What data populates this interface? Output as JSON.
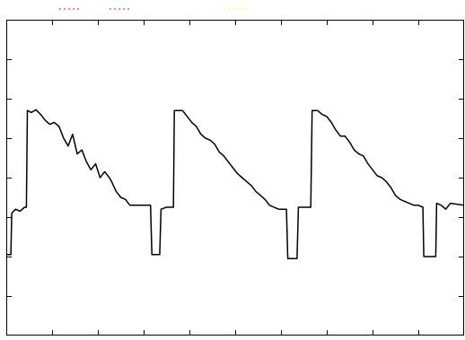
{
  "chart_data": {
    "type": "line",
    "title": "",
    "xlabel": "",
    "ylabel": "",
    "xlim": [
      0,
      100
    ],
    "ylim": [
      0,
      8
    ],
    "grid": false,
    "colors": {
      "axis": "#000000",
      "line": "#000000",
      "bg": "#ffffff"
    },
    "x_ticks": [
      10,
      20,
      30,
      40,
      50,
      60,
      70,
      80,
      90
    ],
    "y_ticks": [
      1,
      2,
      3,
      4,
      5,
      6,
      7
    ],
    "series": [
      {
        "color": "#000000",
        "points": [
          [
            0.0,
            2.05
          ],
          [
            1.0,
            2.05
          ],
          [
            1.2,
            3.1
          ],
          [
            2.0,
            3.2
          ],
          [
            3.0,
            3.15
          ],
          [
            4.0,
            3.25
          ],
          [
            4.4,
            3.25
          ],
          [
            4.6,
            5.7
          ],
          [
            5.5,
            5.65
          ],
          [
            6.5,
            5.72
          ],
          [
            7.5,
            5.6
          ],
          [
            8.5,
            5.45
          ],
          [
            9.5,
            5.35
          ],
          [
            10.5,
            5.4
          ],
          [
            11.5,
            5.3
          ],
          [
            12.5,
            5.0
          ],
          [
            13.5,
            4.8
          ],
          [
            14.5,
            5.1
          ],
          [
            15.5,
            4.6
          ],
          [
            16.5,
            4.7
          ],
          [
            17.5,
            4.4
          ],
          [
            18.5,
            4.2
          ],
          [
            19.5,
            4.35
          ],
          [
            20.5,
            4.0
          ],
          [
            21.5,
            4.15
          ],
          [
            22.5,
            4.0
          ],
          [
            23.0,
            3.9
          ],
          [
            24.0,
            3.65
          ],
          [
            25.0,
            3.5
          ],
          [
            26.0,
            3.45
          ],
          [
            27.0,
            3.3
          ],
          [
            28.0,
            3.3
          ],
          [
            29.0,
            3.3
          ],
          [
            30.0,
            3.3
          ],
          [
            31.5,
            3.3
          ],
          [
            31.8,
            2.05
          ],
          [
            33.5,
            2.05
          ],
          [
            33.8,
            3.2
          ],
          [
            35.0,
            3.25
          ],
          [
            36.5,
            3.25
          ],
          [
            36.7,
            5.7
          ],
          [
            37.5,
            5.7
          ],
          [
            38.5,
            5.7
          ],
          [
            39.5,
            5.55
          ],
          [
            40.5,
            5.4
          ],
          [
            41.5,
            5.3
          ],
          [
            42.5,
            5.1
          ],
          [
            43.5,
            5.0
          ],
          [
            44.5,
            4.95
          ],
          [
            45.5,
            4.85
          ],
          [
            46.5,
            4.65
          ],
          [
            47.5,
            4.55
          ],
          [
            48.5,
            4.4
          ],
          [
            49.5,
            4.25
          ],
          [
            50.5,
            4.1
          ],
          [
            51.5,
            4.0
          ],
          [
            52.5,
            3.9
          ],
          [
            53.5,
            3.8
          ],
          [
            54.5,
            3.65
          ],
          [
            55.5,
            3.55
          ],
          [
            56.5,
            3.45
          ],
          [
            57.5,
            3.3
          ],
          [
            58.5,
            3.25
          ],
          [
            59.5,
            3.2
          ],
          [
            61.2,
            3.2
          ],
          [
            61.5,
            1.95
          ],
          [
            63.5,
            1.95
          ],
          [
            63.8,
            3.25
          ],
          [
            65.0,
            3.25
          ],
          [
            66.5,
            3.25
          ],
          [
            66.8,
            5.7
          ],
          [
            68.0,
            5.7
          ],
          [
            69.0,
            5.6
          ],
          [
            70.0,
            5.55
          ],
          [
            71.0,
            5.4
          ],
          [
            72.0,
            5.2
          ],
          [
            73.0,
            5.05
          ],
          [
            74.0,
            5.05
          ],
          [
            75.0,
            4.9
          ],
          [
            76.0,
            4.7
          ],
          [
            77.0,
            4.6
          ],
          [
            78.0,
            4.55
          ],
          [
            79.0,
            4.35
          ],
          [
            80.0,
            4.2
          ],
          [
            81.0,
            4.05
          ],
          [
            82.0,
            4.0
          ],
          [
            83.0,
            3.9
          ],
          [
            84.0,
            3.75
          ],
          [
            85.0,
            3.55
          ],
          [
            86.0,
            3.45
          ],
          [
            87.0,
            3.4
          ],
          [
            88.0,
            3.35
          ],
          [
            89.0,
            3.3
          ],
          [
            90.0,
            3.3
          ],
          [
            91.0,
            3.25
          ],
          [
            91.2,
            2.0
          ],
          [
            93.8,
            2.0
          ],
          [
            94.0,
            3.35
          ],
          [
            95.0,
            3.3
          ],
          [
            96.0,
            3.2
          ],
          [
            97.0,
            3.35
          ],
          [
            100.0,
            3.3
          ]
        ]
      }
    ]
  },
  "legend": {
    "entries": [
      {
        "color": "#ff0000"
      },
      {
        "color": "#ff0000"
      },
      {
        "color": "#ffff00"
      }
    ]
  }
}
